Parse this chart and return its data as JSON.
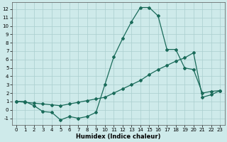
{
  "xlabel": "Humidex (Indice chaleur)",
  "background_color": "#ceeaea",
  "grid_color": "#aacece",
  "line_color": "#1a6b5a",
  "xlim": [
    -0.5,
    23.5
  ],
  "ylim": [
    -1.8,
    12.8
  ],
  "xticks": [
    0,
    1,
    2,
    3,
    4,
    5,
    6,
    7,
    8,
    9,
    10,
    11,
    12,
    13,
    14,
    15,
    16,
    17,
    18,
    19,
    20,
    21,
    22,
    23
  ],
  "yticks": [
    -1,
    0,
    1,
    2,
    3,
    4,
    5,
    6,
    7,
    8,
    9,
    10,
    11,
    12
  ],
  "curve1_x": [
    0,
    1,
    2,
    3,
    4,
    5,
    6,
    7,
    8,
    9,
    10,
    11,
    12,
    13,
    14,
    15,
    16,
    17,
    18,
    19,
    20,
    21,
    22,
    23
  ],
  "curve1_y": [
    1.0,
    1.0,
    0.5,
    -0.2,
    -0.3,
    -1.2,
    -0.8,
    -1.0,
    -0.8,
    -0.3,
    3.0,
    6.3,
    8.5,
    10.5,
    12.2,
    12.2,
    11.2,
    7.2,
    7.2,
    5.0,
    4.8,
    2.0,
    2.2,
    2.3
  ],
  "curve2_x": [
    0,
    1,
    2,
    3,
    4,
    5,
    6,
    7,
    8,
    9,
    10,
    11,
    12,
    13,
    14,
    15,
    16,
    17,
    18,
    19,
    20,
    21,
    22,
    23
  ],
  "curve2_y": [
    1.0,
    0.9,
    0.8,
    0.7,
    0.6,
    0.5,
    0.7,
    0.9,
    1.1,
    1.3,
    1.5,
    2.0,
    2.5,
    3.0,
    3.5,
    4.2,
    4.8,
    5.3,
    5.8,
    6.2,
    6.8,
    1.5,
    1.8,
    2.3
  ],
  "marker": "D",
  "markersize": 2.0,
  "linewidth": 0.9,
  "xlabel_fontsize": 6.0,
  "tick_labelsize": 5.0
}
